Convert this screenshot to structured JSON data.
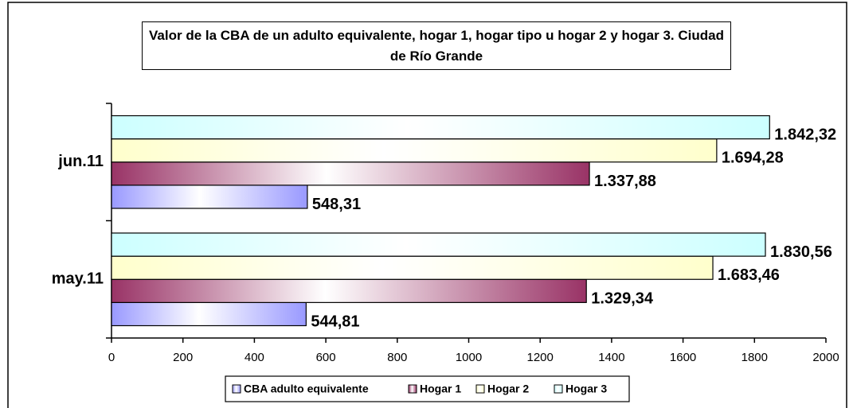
{
  "chart_data": {
    "type": "bar",
    "orientation": "horizontal",
    "title": "Valor de la CBA de un adulto equivalente, hogar 1, hogar tipo u hogar 2 y hogar 3. Ciudad de Río Grande",
    "categories": [
      "may.11",
      "jun.11"
    ],
    "series": [
      {
        "name": "CBA adulto equivalente",
        "color": "#9999ff",
        "values": [
          544.81,
          548.31
        ],
        "value_labels": [
          "544,81",
          "548,31"
        ]
      },
      {
        "name": "Hogar 1",
        "color": "#993366",
        "values": [
          1329.34,
          1337.88
        ],
        "value_labels": [
          "1.329,34",
          "1.337,88"
        ]
      },
      {
        "name": "Hogar 2",
        "color": "#ffffcc",
        "values": [
          1683.46,
          1694.28
        ],
        "value_labels": [
          "1.683,46",
          "1.694,28"
        ]
      },
      {
        "name": "Hogar 3",
        "color": "#ccffff",
        "values": [
          1830.56,
          1842.32
        ],
        "value_labels": [
          "1.830,56",
          "1.842,32"
        ]
      }
    ],
    "xlim": [
      0,
      2000
    ],
    "xticks": [
      0,
      200,
      400,
      600,
      800,
      1000,
      1200,
      1400,
      1600,
      1800,
      2000
    ],
    "legend": "bottom"
  }
}
